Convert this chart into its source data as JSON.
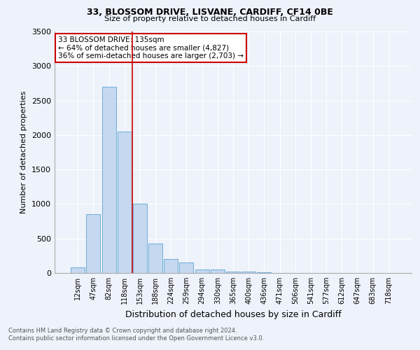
{
  "title1": "33, BLOSSOM DRIVE, LISVANE, CARDIFF, CF14 0BE",
  "title2": "Size of property relative to detached houses in Cardiff",
  "xlabel": "Distribution of detached houses by size in Cardiff",
  "ylabel": "Number of detached properties",
  "annotation_line1": "33 BLOSSOM DRIVE: 135sqm",
  "annotation_line2": "← 64% of detached houses are smaller (4,827)",
  "annotation_line3": "36% of semi-detached houses are larger (2,703) →",
  "categories": [
    "12sqm",
    "47sqm",
    "82sqm",
    "118sqm",
    "153sqm",
    "188sqm",
    "224sqm",
    "259sqm",
    "294sqm",
    "330sqm",
    "365sqm",
    "400sqm",
    "436sqm",
    "471sqm",
    "506sqm",
    "541sqm",
    "577sqm",
    "612sqm",
    "647sqm",
    "683sqm",
    "718sqm"
  ],
  "values": [
    80,
    850,
    2700,
    2050,
    1000,
    430,
    200,
    150,
    55,
    55,
    25,
    25,
    10,
    5,
    2,
    1,
    1,
    1,
    1,
    1,
    1
  ],
  "bar_color": "#c5d8f0",
  "bar_edge_color": "#6baed6",
  "vline_x": 3.5,
  "vline_color": "#cc0000",
  "ylim": [
    0,
    3500
  ],
  "yticks": [
    0,
    500,
    1000,
    1500,
    2000,
    2500,
    3000,
    3500
  ],
  "box_color": "#cc0000",
  "footer1": "Contains HM Land Registry data © Crown copyright and database right 2024.",
  "footer2": "Contains public sector information licensed under the Open Government Licence v3.0.",
  "background_color": "#eef2fa",
  "plot_background": "#eef2fa",
  "grid_color": "#ffffff"
}
